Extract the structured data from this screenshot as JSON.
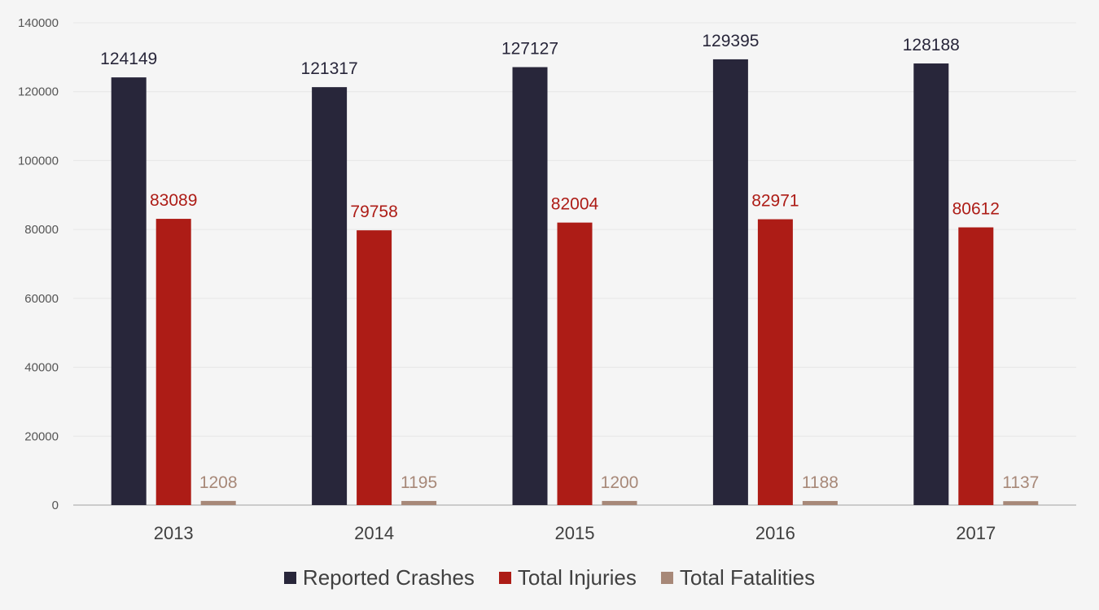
{
  "chart_data": {
    "type": "bar",
    "categories": [
      "2013",
      "2014",
      "2015",
      "2016",
      "2017"
    ],
    "series": [
      {
        "name": "Reported Crashes",
        "color": "#28263a",
        "values": [
          124149,
          121317,
          127127,
          129395,
          128188
        ]
      },
      {
        "name": "Total Injuries",
        "color": "#ad1c16",
        "values": [
          83089,
          79758,
          82004,
          82971,
          80612
        ]
      },
      {
        "name": "Total Fatalities",
        "color": "#a78878",
        "values": [
          1208,
          1195,
          1200,
          1188,
          1137
        ]
      }
    ],
    "ylim": [
      0,
      140000
    ],
    "yticks": [
      0,
      20000,
      40000,
      60000,
      80000,
      100000,
      120000,
      140000
    ],
    "data_labels": true,
    "grid": true,
    "legend_position": "bottom"
  }
}
